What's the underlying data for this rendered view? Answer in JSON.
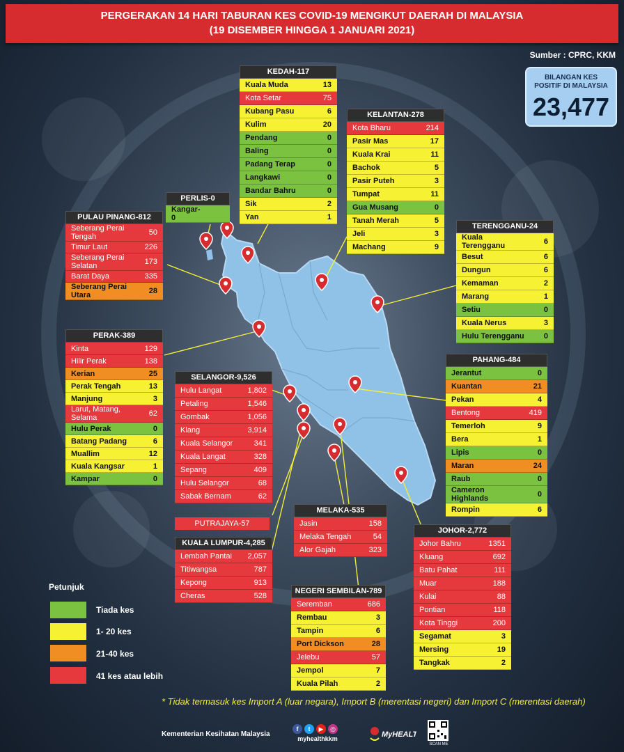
{
  "title": {
    "line1": "PERGERAKAN 14 HARI TABURAN KES COVID-19 MENGIKUT DAERAH DI MALAYSIA",
    "line2": "(19 DISEMBER HINGGA 1 JANUARI 2021)"
  },
  "source": "Sumber : CPRC, KKM",
  "total": {
    "label_line1": "BILANGAN KES",
    "label_line2": "POSITIF DI MALAYSIA",
    "value": "23,477"
  },
  "colors": {
    "red": "#e5393d",
    "yellow": "#f6f133",
    "orange": "#f18e23",
    "green": "#7cc241",
    "map": "#90c1e6",
    "banner": "#d62b2f"
  },
  "states": [
    {
      "id": "kedah",
      "title": "KEDAH-117",
      "rows": [
        {
          "n": "Kuala Muda",
          "v": "13",
          "c": "yellow"
        },
        {
          "n": "Kota Setar",
          "v": "75",
          "c": "red"
        },
        {
          "n": "Kubang Pasu",
          "v": "6",
          "c": "yellow"
        },
        {
          "n": "Kulim",
          "v": "20",
          "c": "yellow"
        },
        {
          "n": "Pendang",
          "v": "0",
          "c": "green"
        },
        {
          "n": "Baling",
          "v": "0",
          "c": "green"
        },
        {
          "n": "Padang Terap",
          "v": "0",
          "c": "green"
        },
        {
          "n": "Langkawi",
          "v": "0",
          "c": "green"
        },
        {
          "n": "Bandar Bahru",
          "v": "0",
          "c": "green"
        },
        {
          "n": "Sik",
          "v": "2",
          "c": "yellow"
        },
        {
          "n": "Yan",
          "v": "1",
          "c": "yellow"
        }
      ]
    },
    {
      "id": "kelantan",
      "title": "KELANTAN-278",
      "rows": [
        {
          "n": "Kota Bharu",
          "v": "214",
          "c": "red"
        },
        {
          "n": "Pasir Mas",
          "v": "17",
          "c": "yellow"
        },
        {
          "n": "Kuala Krai",
          "v": "11",
          "c": "yellow"
        },
        {
          "n": "Bachok",
          "v": "5",
          "c": "yellow"
        },
        {
          "n": "Pasir Puteh",
          "v": "3",
          "c": "yellow"
        },
        {
          "n": "Tumpat",
          "v": "11",
          "c": "yellow"
        },
        {
          "n": "Gua Musang",
          "v": "0",
          "c": "green"
        },
        {
          "n": "Tanah Merah",
          "v": "5",
          "c": "yellow"
        },
        {
          "n": "Jeli",
          "v": "3",
          "c": "yellow"
        },
        {
          "n": "Machang",
          "v": "9",
          "c": "yellow"
        }
      ]
    },
    {
      "id": "perlis",
      "title": "PERLIS-0",
      "rows": [
        {
          "n": "Kangar-0",
          "v": "",
          "c": "green"
        }
      ]
    },
    {
      "id": "pulau-pinang",
      "title": "PULAU PINANG-812",
      "rows": [
        {
          "n": "Seberang Perai Tengah",
          "v": "50",
          "c": "red"
        },
        {
          "n": "Timur Laut",
          "v": "226",
          "c": "red"
        },
        {
          "n": "Seberang Perai Selatan",
          "v": "173",
          "c": "red"
        },
        {
          "n": "Barat Daya",
          "v": "335",
          "c": "red"
        },
        {
          "n": "Seberang Perai Utara",
          "v": "28",
          "c": "orange"
        }
      ]
    },
    {
      "id": "terengganu",
      "title": "TERENGGANU-24",
      "rows": [
        {
          "n": "Kuala Terengganu",
          "v": "6",
          "c": "yellow"
        },
        {
          "n": "Besut",
          "v": "6",
          "c": "yellow"
        },
        {
          "n": "Dungun",
          "v": "6",
          "c": "yellow"
        },
        {
          "n": "Kemaman",
          "v": "2",
          "c": "yellow"
        },
        {
          "n": "Marang",
          "v": "1",
          "c": "yellow"
        },
        {
          "n": "Setiu",
          "v": "0",
          "c": "green"
        },
        {
          "n": "Kuala Nerus",
          "v": "3",
          "c": "yellow"
        },
        {
          "n": "Hulu Terengganu",
          "v": "0",
          "c": "green"
        }
      ]
    },
    {
      "id": "perak",
      "title": "PERAK-389",
      "rows": [
        {
          "n": "Kinta",
          "v": "129",
          "c": "red"
        },
        {
          "n": "Hilir Perak",
          "v": "138",
          "c": "red"
        },
        {
          "n": "Kerian",
          "v": "25",
          "c": "orange"
        },
        {
          "n": "Perak Tengah",
          "v": "13",
          "c": "yellow"
        },
        {
          "n": "Manjung",
          "v": "3",
          "c": "yellow"
        },
        {
          "n": "Larut, Matang, Selama",
          "v": "62",
          "c": "red"
        },
        {
          "n": "Hulu Perak",
          "v": "0",
          "c": "green"
        },
        {
          "n": "Batang Padang",
          "v": "6",
          "c": "yellow"
        },
        {
          "n": "Muallim",
          "v": "12",
          "c": "yellow"
        },
        {
          "n": "Kuala Kangsar",
          "v": "1",
          "c": "yellow"
        },
        {
          "n": "Kampar",
          "v": "0",
          "c": "green"
        }
      ]
    },
    {
      "id": "selangor",
      "title": "SELANGOR-9,526",
      "rows": [
        {
          "n": "Hulu Langat",
          "v": "1,802",
          "c": "red"
        },
        {
          "n": "Petaling",
          "v": "1,546",
          "c": "red"
        },
        {
          "n": "Gombak",
          "v": "1,056",
          "c": "red"
        },
        {
          "n": "Klang",
          "v": "3,914",
          "c": "red"
        },
        {
          "n": "Kuala Selangor",
          "v": "341",
          "c": "red"
        },
        {
          "n": "Kuala Langat",
          "v": "328",
          "c": "red"
        },
        {
          "n": "Sepang",
          "v": "409",
          "c": "red"
        },
        {
          "n": "Hulu Selangor",
          "v": "68",
          "c": "red"
        },
        {
          "n": "Sabak Bernam",
          "v": "62",
          "c": "red"
        }
      ]
    },
    {
      "id": "pahang",
      "title": "PAHANG-484",
      "rows": [
        {
          "n": "Jerantut",
          "v": "0",
          "c": "green"
        },
        {
          "n": "Kuantan",
          "v": "21",
          "c": "orange"
        },
        {
          "n": "Pekan",
          "v": "4",
          "c": "yellow"
        },
        {
          "n": "Bentong",
          "v": "419",
          "c": "red"
        },
        {
          "n": "Temerloh",
          "v": "9",
          "c": "yellow"
        },
        {
          "n": "Bera",
          "v": "1",
          "c": "yellow"
        },
        {
          "n": "Lipis",
          "v": "0",
          "c": "green"
        },
        {
          "n": "Maran",
          "v": "24",
          "c": "orange"
        },
        {
          "n": "Raub",
          "v": "0",
          "c": "green"
        },
        {
          "n": "Cameron Highlands",
          "v": "0",
          "c": "green"
        },
        {
          "n": "Rompin",
          "v": "6",
          "c": "yellow"
        }
      ]
    },
    {
      "id": "melaka",
      "title": "MELAKA-535",
      "rows": [
        {
          "n": "Jasin",
          "v": "158",
          "c": "red"
        },
        {
          "n": "Melaka Tengah",
          "v": "54",
          "c": "red"
        },
        {
          "n": "Alor Gajah",
          "v": "323",
          "c": "red"
        }
      ]
    },
    {
      "id": "kuala-lumpur",
      "title": "KUALA LUMPUR-4,285",
      "rows": [
        {
          "n": "Lembah Pantai",
          "v": "2,057",
          "c": "red"
        },
        {
          "n": "Titiwangsa",
          "v": "787",
          "c": "red"
        },
        {
          "n": "Kepong",
          "v": "913",
          "c": "red"
        },
        {
          "n": "Cheras",
          "v": "528",
          "c": "red"
        }
      ]
    },
    {
      "id": "johor",
      "title": "JOHOR-2,772",
      "rows": [
        {
          "n": "Johor Bahru",
          "v": "1351",
          "c": "red"
        },
        {
          "n": "Kluang",
          "v": "692",
          "c": "red"
        },
        {
          "n": "Batu Pahat",
          "v": "111",
          "c": "red"
        },
        {
          "n": "Muar",
          "v": "188",
          "c": "red"
        },
        {
          "n": "Kulai",
          "v": "88",
          "c": "red"
        },
        {
          "n": "Pontian",
          "v": "118",
          "c": "red"
        },
        {
          "n": "Kota Tinggi",
          "v": "200",
          "c": "red"
        },
        {
          "n": "Segamat",
          "v": "3",
          "c": "yellow"
        },
        {
          "n": "Mersing",
          "v": "19",
          "c": "yellow"
        },
        {
          "n": "Tangkak",
          "v": "2",
          "c": "yellow"
        }
      ]
    },
    {
      "id": "negeri-sembilan",
      "title": "NEGERI SEMBILAN-789",
      "rows": [
        {
          "n": "Seremban",
          "v": "686",
          "c": "red"
        },
        {
          "n": "Rembau",
          "v": "3",
          "c": "yellow"
        },
        {
          "n": "Tampin",
          "v": "6",
          "c": "yellow"
        },
        {
          "n": "Port Dickson",
          "v": "28",
          "c": "orange"
        },
        {
          "n": "Jelebu",
          "v": "57",
          "c": "red"
        },
        {
          "n": "Jempol",
          "v": "7",
          "c": "yellow"
        },
        {
          "n": "Kuala Pilah",
          "v": "2",
          "c": "yellow"
        }
      ]
    }
  ],
  "putrajaya": "PUTRAJAYA-57",
  "legend": {
    "title": "Petunjuk",
    "items": [
      {
        "label": "Tiada kes",
        "c": "green"
      },
      {
        "label": "1- 20 kes",
        "c": "yellow"
      },
      {
        "label": "21-40 kes",
        "c": "orange"
      },
      {
        "label": "41 kes atau lebih",
        "c": "red"
      }
    ]
  },
  "footnote": "* Tidak termasuk kes Import A (luar negara),  Import B (merentasi negeri) dan Import C (merentasi daerah)",
  "footer": {
    "ministry": "Kementerian Kesihatan Malaysia",
    "handle": "myhealthkkm",
    "logo_text": "MyHEALTH",
    "qr_label": "SCAN ME"
  }
}
